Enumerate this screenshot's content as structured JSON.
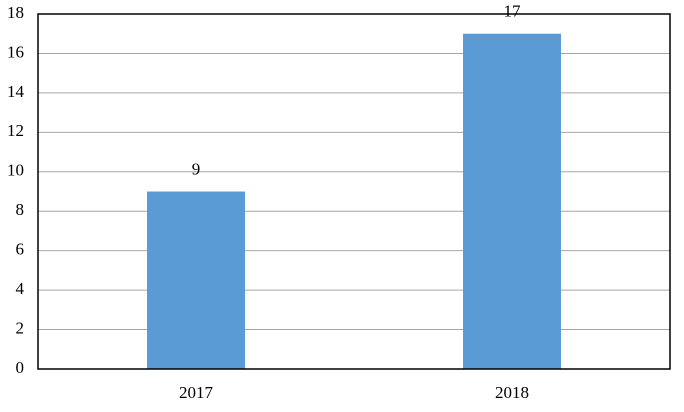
{
  "chart_data": {
    "type": "bar",
    "categories": [
      "2017",
      "2018"
    ],
    "values": [
      9,
      17
    ],
    "color": "#5b9bd5",
    "ylim": [
      0,
      18
    ],
    "yticks": [
      0,
      2,
      4,
      6,
      8,
      10,
      12,
      14,
      16,
      18
    ],
    "grid": true
  }
}
